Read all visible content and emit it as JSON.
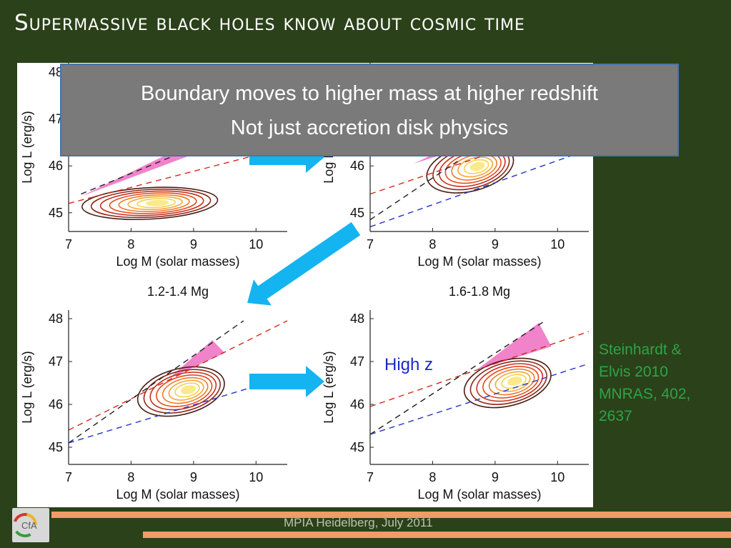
{
  "slide": {
    "title": "Supermassive black holes know about cosmic time",
    "callout": {
      "line1": "Boundary moves to higher mass at higher redshift",
      "line2": "Not just accretion disk physics"
    },
    "citation": [
      "Steinhardt &",
      "Elvis 2010",
      "MNRAS, 402,",
      "2637"
    ],
    "footer": "MPIA Heidelberg, July 2011",
    "logo_text": "CfA"
  },
  "colors": {
    "background": "#2b4119",
    "stripe": "#f29a6a",
    "arrow": "#14b4f0",
    "wedge": "#f07cc8",
    "callout": "#7a7a7a",
    "citation": "#2ea34a"
  },
  "chart_data": [
    {
      "type": "scatter",
      "title": "",
      "xlabel": "Log M (solar masses)",
      "ylabel": "Log L (erg/s)",
      "xlim": [
        7,
        10.5
      ],
      "ylim": [
        44.6,
        48.2
      ],
      "xticks": [
        "7",
        "8",
        "9",
        "10"
      ],
      "yticks": [
        "45",
        "46",
        "47",
        "48"
      ],
      "contour_center": [
        8.3,
        45.2
      ],
      "lines": {
        "red": [
          [
            7,
            45.2
          ],
          [
            10.5,
            46.4
          ]
        ],
        "black": [
          [
            7.2,
            45.4
          ],
          [
            9.2,
            46.5
          ]
        ]
      },
      "wedge": [
        [
          7.2,
          45.35
        ],
        [
          9.2,
          46.35
        ],
        [
          9.2,
          46.65
        ]
      ]
    },
    {
      "type": "scatter",
      "title": "",
      "xlabel": "Log M (solar masses)",
      "ylabel": "Log L (erg/s)",
      "xlim": [
        7,
        10.5
      ],
      "ylim": [
        44.6,
        48.2
      ],
      "xticks": [
        "7",
        "8",
        "9",
        "10"
      ],
      "yticks": [
        "45",
        "46",
        "47",
        "48"
      ],
      "contour_center": [
        8.6,
        45.95
      ],
      "lines": {
        "red": [
          [
            7,
            45.4
          ],
          [
            9,
            46.3
          ]
        ],
        "black": [
          [
            7,
            44.85
          ],
          [
            8.4,
            46.1
          ]
        ],
        "blue": [
          [
            7,
            44.7
          ],
          [
            10.5,
            46.35
          ]
        ]
      },
      "wedge": [
        [
          7.7,
          46.05
        ],
        [
          9,
          46.6
        ],
        [
          9,
          46.9
        ]
      ]
    },
    {
      "type": "scatter",
      "title": "1.2-1.4 Mg",
      "xlabel": "Log M (solar masses)",
      "ylabel": "Log L (erg/s)",
      "xlim": [
        7,
        10.5
      ],
      "ylim": [
        44.6,
        48.2
      ],
      "xticks": [
        "7",
        "8",
        "9",
        "10"
      ],
      "yticks": [
        "45",
        "46",
        "47",
        "48"
      ],
      "contour_center": [
        8.8,
        46.3
      ],
      "lines": {
        "red": [
          [
            7,
            45.4
          ],
          [
            10.5,
            47.95
          ]
        ],
        "black": [
          [
            7,
            45.1
          ],
          [
            9.8,
            47.95
          ]
        ],
        "blue": [
          [
            7,
            45.1
          ],
          [
            10.5,
            46.65
          ]
        ]
      },
      "wedge": [
        [
          8.6,
          46.6
        ],
        [
          9.3,
          47.5
        ],
        [
          9.5,
          47.2
        ]
      ]
    },
    {
      "type": "scatter",
      "title": "1.6-1.8 Mg",
      "xlabel": "Log M (solar masses)",
      "ylabel": "Log L (erg/s)",
      "xlim": [
        7,
        10.5
      ],
      "ylim": [
        44.6,
        48.2
      ],
      "xticks": [
        "7",
        "8",
        "9",
        "10"
      ],
      "yticks": [
        "45",
        "46",
        "47",
        "48"
      ],
      "annotation": "High z",
      "contour_center": [
        9.2,
        46.5
      ],
      "lines": {
        "red": [
          [
            7,
            45.95
          ],
          [
            10.5,
            47.7
          ]
        ],
        "black": [
          [
            7,
            45.3
          ],
          [
            9.8,
            47.95
          ]
        ],
        "blue": [
          [
            7,
            45.3
          ],
          [
            10.5,
            46.95
          ]
        ]
      },
      "wedge": [
        [
          8.7,
          46.8
        ],
        [
          9.7,
          47.9
        ],
        [
          9.9,
          47.35
        ]
      ]
    }
  ]
}
